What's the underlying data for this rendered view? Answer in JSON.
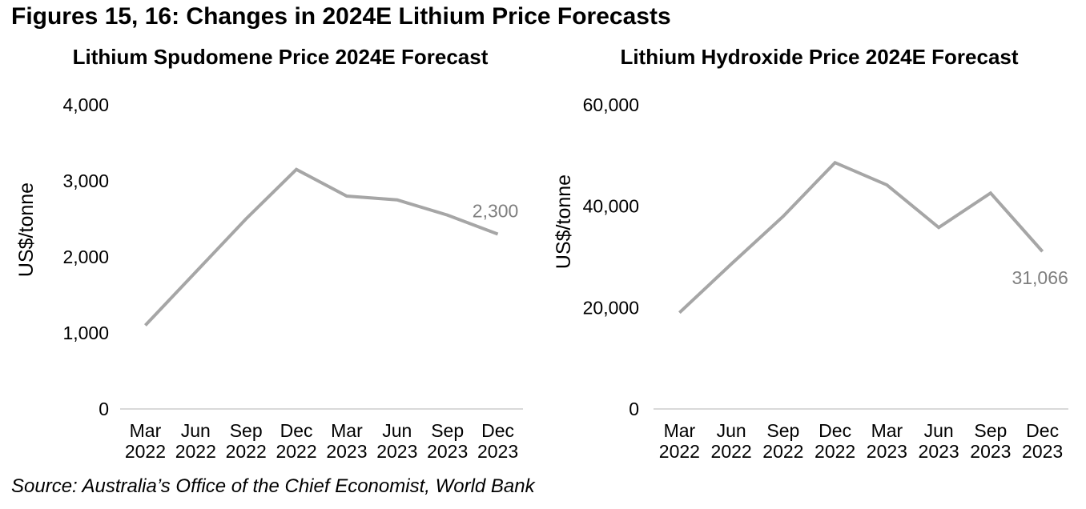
{
  "figure": {
    "title": "Figures 15, 16: Changes in 2024E Lithium Price Forecasts",
    "source": "Source: Australia’s Office of the Chief Economist, World Bank"
  },
  "colors": {
    "line": "#a6a6a6",
    "axis": "#d9d9d9",
    "data_label": "#7f7f7f",
    "text": "#000000"
  },
  "chart_data": [
    {
      "type": "line",
      "title": "Lithium Spudomene Price 2024E Forecast",
      "ylabel": "US$/tonne",
      "categories": [
        "Mar 2022",
        "Jun 2022",
        "Sep 2022",
        "Dec 2022",
        "Mar 2023",
        "Jun 2023",
        "Sep 2023",
        "Dec 2023"
      ],
      "values": [
        1100,
        1800,
        2500,
        3150,
        2800,
        2750,
        2550,
        2300
      ],
      "end_label": "2,300",
      "end_label_position": "above",
      "ylim": [
        0,
        4000
      ],
      "yticks": [
        0,
        1000,
        2000,
        3000,
        4000
      ],
      "ytick_labels": [
        "0",
        "1,000",
        "2,000",
        "3,000",
        "4,000"
      ],
      "grid": false,
      "legend": "none"
    },
    {
      "type": "line",
      "title": "Lithium Hydroxide Price 2024E Forecast",
      "ylabel": "US$/tonne",
      "categories": [
        "Mar 2022",
        "Jun 2022",
        "Sep 2022",
        "Dec 2022",
        "Mar 2023",
        "Jun 2023",
        "Sep 2023",
        "Dec 2023"
      ],
      "values": [
        19000,
        28600,
        38000,
        48600,
        44200,
        35800,
        42600,
        31066
      ],
      "end_label": "31,066",
      "end_label_position": "below",
      "ylim": [
        0,
        60000
      ],
      "yticks": [
        0,
        20000,
        40000,
        60000
      ],
      "ytick_labels": [
        "0",
        "20,000",
        "40,000",
        "60,000"
      ],
      "grid": false,
      "legend": "none"
    }
  ]
}
